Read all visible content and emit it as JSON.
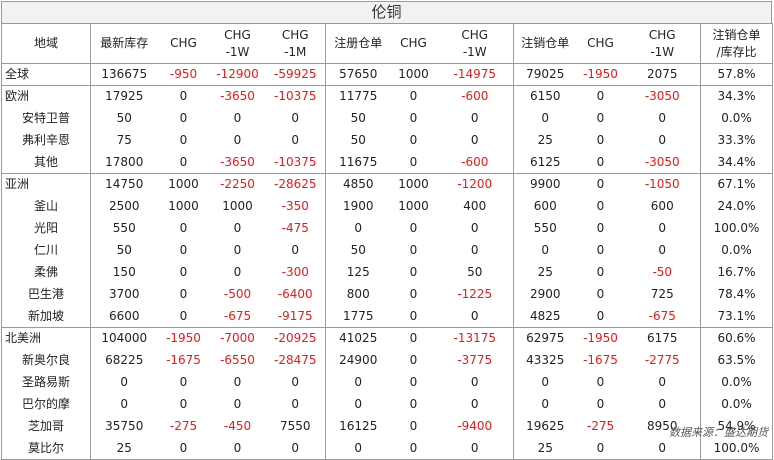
{
  "title": "伦铜",
  "source": "数据来源：盛达期货",
  "headers": [
    [
      "地域"
    ],
    [
      "最新库存"
    ],
    [
      "CHG"
    ],
    [
      "CHG",
      "-1W"
    ],
    [
      "CHG",
      "-1M"
    ],
    [
      "注册仓单"
    ],
    [
      "CHG"
    ],
    [
      "CHG",
      "-1W"
    ],
    [
      "注销仓单"
    ],
    [
      "CHG"
    ],
    [
      "CHG",
      "-1W"
    ],
    [
      "注销仓单",
      "/库存比"
    ]
  ],
  "groups": [
    [
      [
        "全球",
        "136675",
        "-950",
        "-12900",
        "-59925",
        "57650",
        "1000",
        "-14975",
        "79025",
        "-1950",
        "2075",
        "57.8%"
      ]
    ],
    [
      [
        "欧洲",
        "17925",
        "0",
        "-3650",
        "-10375",
        "11775",
        "0",
        "-600",
        "6150",
        "0",
        "-3050",
        "34.3%"
      ],
      [
        "安特卫普",
        "50",
        "0",
        "0",
        "0",
        "50",
        "0",
        "0",
        "0",
        "0",
        "0",
        "0.0%"
      ],
      [
        "弗利辛恩",
        "75",
        "0",
        "0",
        "0",
        "50",
        "0",
        "0",
        "25",
        "0",
        "0",
        "33.3%"
      ],
      [
        "其他",
        "17800",
        "0",
        "-3650",
        "-10375",
        "11675",
        "0",
        "-600",
        "6125",
        "0",
        "-3050",
        "34.4%"
      ]
    ],
    [
      [
        "亚洲",
        "14750",
        "1000",
        "-2250",
        "-28625",
        "4850",
        "1000",
        "-1200",
        "9900",
        "0",
        "-1050",
        "67.1%"
      ],
      [
        "釜山",
        "2500",
        "1000",
        "1000",
        "-350",
        "1900",
        "1000",
        "400",
        "600",
        "0",
        "600",
        "24.0%"
      ],
      [
        "光阳",
        "550",
        "0",
        "0",
        "-475",
        "0",
        "0",
        "0",
        "550",
        "0",
        "0",
        "100.0%"
      ],
      [
        "仁川",
        "50",
        "0",
        "0",
        "0",
        "50",
        "0",
        "0",
        "0",
        "0",
        "0",
        "0.0%"
      ],
      [
        "柔佛",
        "150",
        "0",
        "0",
        "-300",
        "125",
        "0",
        "50",
        "25",
        "0",
        "-50",
        "16.7%"
      ],
      [
        "巴生港",
        "3700",
        "0",
        "-500",
        "-6400",
        "800",
        "0",
        "-1225",
        "2900",
        "0",
        "725",
        "78.4%"
      ],
      [
        "新加坡",
        "6600",
        "0",
        "-675",
        "-9175",
        "1775",
        "0",
        "0",
        "4825",
        "0",
        "-675",
        "73.1%"
      ]
    ],
    [
      [
        "北美洲",
        "104000",
        "-1950",
        "-7000",
        "-20925",
        "41025",
        "0",
        "-13175",
        "62975",
        "-1950",
        "6175",
        "60.6%"
      ],
      [
        "新奥尔良",
        "68225",
        "-1675",
        "-6550",
        "-28475",
        "24900",
        "0",
        "-3775",
        "43325",
        "-1675",
        "-2775",
        "63.5%"
      ],
      [
        "圣路易斯",
        "0",
        "0",
        "0",
        "0",
        "0",
        "0",
        "0",
        "0",
        "0",
        "0",
        "0.0%"
      ],
      [
        "巴尔的摩",
        "0",
        "0",
        "0",
        "0",
        "0",
        "0",
        "0",
        "0",
        "0",
        "0",
        "0.0%"
      ],
      [
        "芝加哥",
        "35750",
        "-275",
        "-450",
        "7550",
        "16125",
        "0",
        "-9400",
        "19625",
        "-275",
        "8950",
        "54.9%"
      ],
      [
        "莫比尔",
        "25",
        "0",
        "0",
        "0",
        "0",
        "0",
        "0",
        "25",
        "0",
        "0",
        "100.0%"
      ]
    ]
  ]
}
